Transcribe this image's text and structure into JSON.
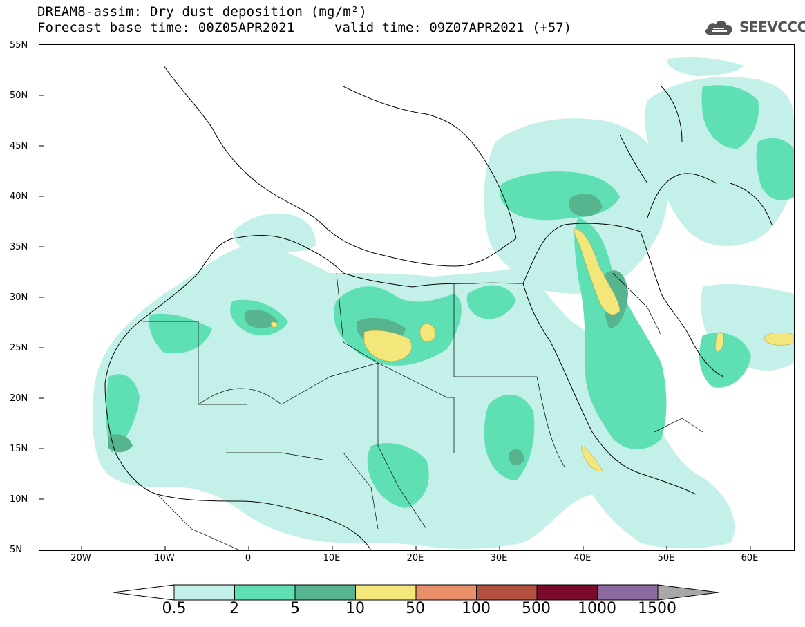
{
  "title": {
    "line1": "DREAM8-assim: Dry dust deposition (mg/m²)",
    "line2": "Forecast base time: 00Z05APR2021",
    "valid": "valid time: 09Z07APR2021 (+57)"
  },
  "logo": {
    "icon": "cloud-icon",
    "text": "SEEVCCC"
  },
  "axes": {
    "lat_labels": [
      "55N",
      "50N",
      "45N",
      "40N",
      "35N",
      "30N",
      "25N",
      "20N",
      "15N",
      "10N",
      "5N"
    ],
    "lon_labels": [
      "20W",
      "10W",
      "0",
      "10E",
      "20E",
      "30E",
      "40E",
      "50E",
      "60E"
    ]
  },
  "colorbar": {
    "levels": [
      "0.5",
      "2",
      "5",
      "10",
      "50",
      "100",
      "500",
      "1000",
      "1500"
    ],
    "colors": [
      "#c3f0e8",
      "#5fe0b4",
      "#56b48e",
      "#f3e77c",
      "#e9906a",
      "#b1503f",
      "#7c0a2a",
      "#8b6a9f"
    ],
    "under_color": "#ffffff",
    "over_color": "#a8a8a8"
  },
  "palette": {
    "light": "#c3f0e8",
    "mid": "#5fe0b4",
    "dark": "#56b48e",
    "yellow": "#f3e77c"
  }
}
